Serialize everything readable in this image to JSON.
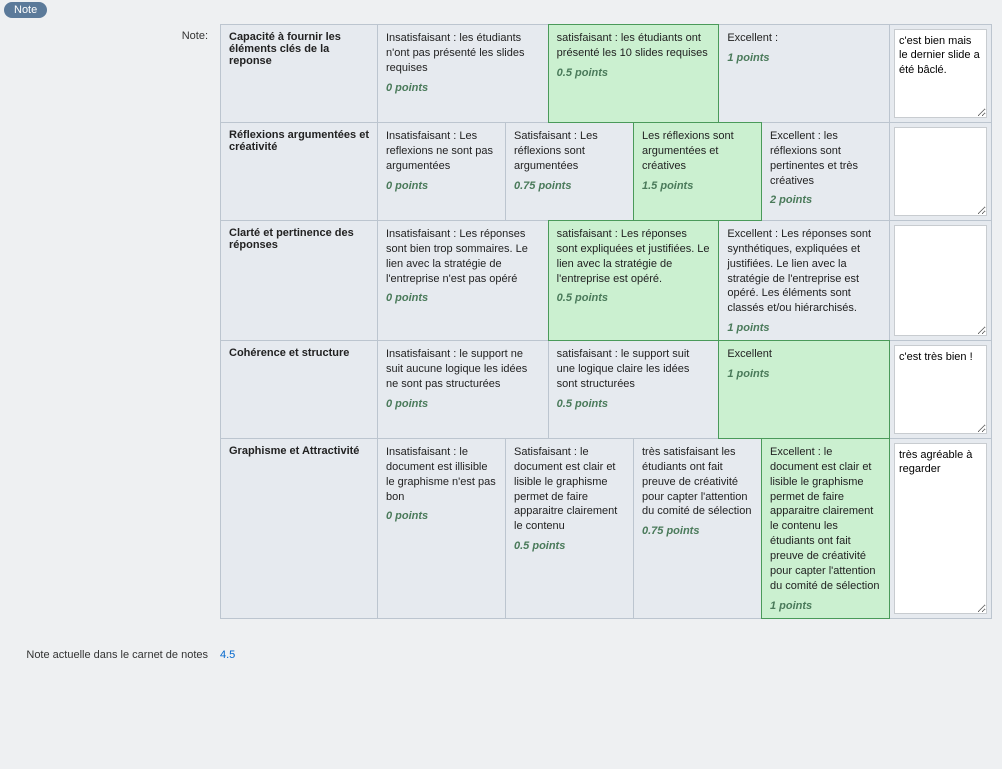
{
  "tab_label": "Note",
  "note_label": "Note:",
  "rows": [
    {
      "criterion": "Capacité à fournir les éléments clés de la reponse",
      "levels": [
        {
          "desc": "Insatisfaisant : les étudiants n'ont pas présenté les slides requises",
          "points": "0  points",
          "selected": false
        },
        {
          "desc": "satisfaisant : les étudiants ont présenté les 10 slides requises",
          "points": "0.5  points",
          "selected": true
        },
        {
          "desc": "Excellent :",
          "points": "1  points",
          "selected": false
        }
      ],
      "comment": "c'est bien mais le dernier slide a été bâclé."
    },
    {
      "criterion": "Réflexions argumentées et créativité",
      "levels": [
        {
          "desc": "Insatisfaisant : Les reflexions ne sont pas argumentées",
          "points": "0  points",
          "selected": false
        },
        {
          "desc": "Satisfaisant : Les réflexions sont argumentées",
          "points": "0.75  points",
          "selected": false
        },
        {
          "desc": "Les réflexions sont argumentées et créatives",
          "points": "1.5  points",
          "selected": true
        },
        {
          "desc": "Excellent : les réflexions sont pertinentes et très créatives",
          "points": "2  points",
          "selected": false
        }
      ],
      "comment": ""
    },
    {
      "criterion": "Clarté et pertinence des réponses",
      "levels": [
        {
          "desc": "Insatisfaisant : Les réponses sont bien trop sommaires. Le lien avec la stratégie de l'entreprise n'est pas opéré",
          "points": "0  points",
          "selected": false
        },
        {
          "desc": "satisfaisant : Les réponses sont expliquées et justifiées. Le lien avec la stratégie de l'entreprise est opéré.",
          "points": "0.5  points",
          "selected": true
        },
        {
          "desc": "Excellent : Les réponses sont synthétiques, expliquées et justifiées. Le lien avec la stratégie de l'entreprise est opéré. Les éléments sont classés et/ou hiérarchisés.",
          "points": "1  points",
          "selected": false
        }
      ],
      "comment": ""
    },
    {
      "criterion": "Cohérence et structure",
      "levels": [
        {
          "desc": "Insatisfaisant : le support ne suit aucune logique les idées ne sont pas structurées",
          "points": "0  points",
          "selected": false
        },
        {
          "desc": "satisfaisant : le support suit une logique claire les idées sont structurées",
          "points": "0.5  points",
          "selected": false
        },
        {
          "desc": "Excellent",
          "points": "1  points",
          "selected": true
        }
      ],
      "comment": "c'est très bien !"
    },
    {
      "criterion": "Graphisme et Attractivité",
      "levels": [
        {
          "desc": "Insatisfaisant : le document est illisible le graphisme n'est pas bon",
          "points": "0  points",
          "selected": false
        },
        {
          "desc": "Satisfaisant : le document est clair et lisible le graphisme permet de faire apparaitre clairement le contenu",
          "points": "0.5  points",
          "selected": false
        },
        {
          "desc": "très satisfaisant les étudiants ont fait preuve de créativité pour capter l'attention du comité de sélection",
          "points": "0.75  points",
          "selected": false
        },
        {
          "desc": "Excellent : le document est clair et lisible le graphisme permet de faire apparaitre clairement le contenu les étudiants ont fait preuve de créativité pour capter l'attention du comité de sélection",
          "points": "1  points",
          "selected": true
        }
      ],
      "comment": "très agréable à regarder"
    }
  ],
  "footer": {
    "label": "Note actuelle dans le carnet de notes",
    "value": "4.5"
  },
  "colors": {
    "page_bg": "#eef0f2",
    "cell_bg": "#e6eaef",
    "border": "#bcc5cf",
    "selected_bg": "#cbf0d0",
    "selected_border": "#4a9a5a",
    "points_color": "#4a7a5a",
    "link_color": "#0066cc",
    "tab_bg": "#5b7a9a"
  }
}
